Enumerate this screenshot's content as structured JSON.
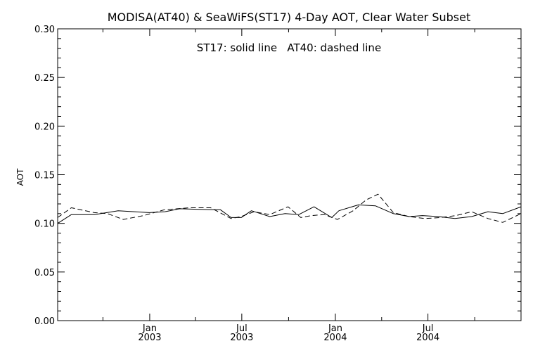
{
  "chart_data": {
    "type": "line",
    "title": "MODISA(AT40) & SeaWiFS(ST17) 4-Day AOT, Clear Water Subset",
    "annotation": "ST17: solid line   AT40: dashed line",
    "ylabel": "AOT",
    "xlabel": "",
    "xlim": [
      "2002-07-04",
      "2004-12-31"
    ],
    "ylim": [
      0.0,
      0.3
    ],
    "y_ticks": [
      {
        "value": 0.0,
        "label": "0.00"
      },
      {
        "value": 0.05,
        "label": "0.05"
      },
      {
        "value": 0.1,
        "label": "0.10"
      },
      {
        "value": 0.15,
        "label": "0.15"
      },
      {
        "value": 0.2,
        "label": "0.20"
      },
      {
        "value": 0.25,
        "label": "0.25"
      },
      {
        "value": 0.3,
        "label": "0.30"
      }
    ],
    "x_ticks": [
      {
        "date": "2003-01-01",
        "label": "Jan",
        "year": "2003"
      },
      {
        "date": "2003-07-01",
        "label": "Jul",
        "year": "2003"
      },
      {
        "date": "2004-01-01",
        "label": "Jan",
        "year": "2004"
      },
      {
        "date": "2004-07-01",
        "label": "Jul",
        "year": "2004"
      }
    ],
    "x_minor_ticks": [
      "2002-10-01",
      "2003-04-01",
      "2003-10-01",
      "2004-04-01",
      "2004-10-01"
    ],
    "grid": false,
    "series": [
      {
        "name": "ST17",
        "style": "solid",
        "color": "#000000",
        "points": [
          [
            "2002-07-04",
            0.1
          ],
          [
            "2002-07-31",
            0.109
          ],
          [
            "2002-09-14",
            0.109
          ],
          [
            "2002-10-31",
            0.113
          ],
          [
            "2002-12-31",
            0.111
          ],
          [
            "2003-01-31",
            0.112
          ],
          [
            "2003-03-01",
            0.115
          ],
          [
            "2003-04-30",
            0.114
          ],
          [
            "2003-05-20",
            0.114
          ],
          [
            "2003-06-10",
            0.106
          ],
          [
            "2003-06-30",
            0.106
          ],
          [
            "2003-07-20",
            0.113
          ],
          [
            "2003-08-25",
            0.107
          ],
          [
            "2003-09-24",
            0.11
          ],
          [
            "2003-10-21",
            0.109
          ],
          [
            "2003-11-20",
            0.117
          ],
          [
            "2003-12-25",
            0.106
          ],
          [
            "2004-01-08",
            0.113
          ],
          [
            "2004-02-15",
            0.119
          ],
          [
            "2004-03-20",
            0.118
          ],
          [
            "2004-04-24",
            0.11
          ],
          [
            "2004-05-25",
            0.107
          ],
          [
            "2004-06-20",
            0.108
          ],
          [
            "2004-07-22",
            0.107
          ],
          [
            "2004-08-23",
            0.105
          ],
          [
            "2004-09-25",
            0.107
          ],
          [
            "2004-10-27",
            0.112
          ],
          [
            "2004-11-25",
            0.11
          ],
          [
            "2004-12-31",
            0.117
          ]
        ]
      },
      {
        "name": "AT40",
        "style": "dashed",
        "color": "#000000",
        "points": [
          [
            "2002-07-04",
            0.106
          ],
          [
            "2002-07-31",
            0.116
          ],
          [
            "2002-09-14",
            0.111
          ],
          [
            "2002-10-10",
            0.11
          ],
          [
            "2002-11-10",
            0.104
          ],
          [
            "2002-12-20",
            0.108
          ],
          [
            "2003-01-30",
            0.114
          ],
          [
            "2003-03-20",
            0.116
          ],
          [
            "2003-05-01",
            0.116
          ],
          [
            "2003-06-10",
            0.105
          ],
          [
            "2003-06-30",
            0.107
          ],
          [
            "2003-07-25",
            0.112
          ],
          [
            "2003-08-25",
            0.109
          ],
          [
            "2003-09-30",
            0.117
          ],
          [
            "2003-10-25",
            0.106
          ],
          [
            "2003-11-15",
            0.108
          ],
          [
            "2003-12-10",
            0.109
          ],
          [
            "2004-01-05",
            0.104
          ],
          [
            "2004-02-05",
            0.113
          ],
          [
            "2004-03-01",
            0.124
          ],
          [
            "2004-03-25",
            0.13
          ],
          [
            "2004-04-24",
            0.111
          ],
          [
            "2004-05-25",
            0.107
          ],
          [
            "2004-06-25",
            0.105
          ],
          [
            "2004-07-25",
            0.106
          ],
          [
            "2004-08-25",
            0.108
          ],
          [
            "2004-09-25",
            0.112
          ],
          [
            "2004-10-27",
            0.105
          ],
          [
            "2004-11-25",
            0.101
          ],
          [
            "2004-12-31",
            0.11
          ]
        ]
      }
    ]
  }
}
